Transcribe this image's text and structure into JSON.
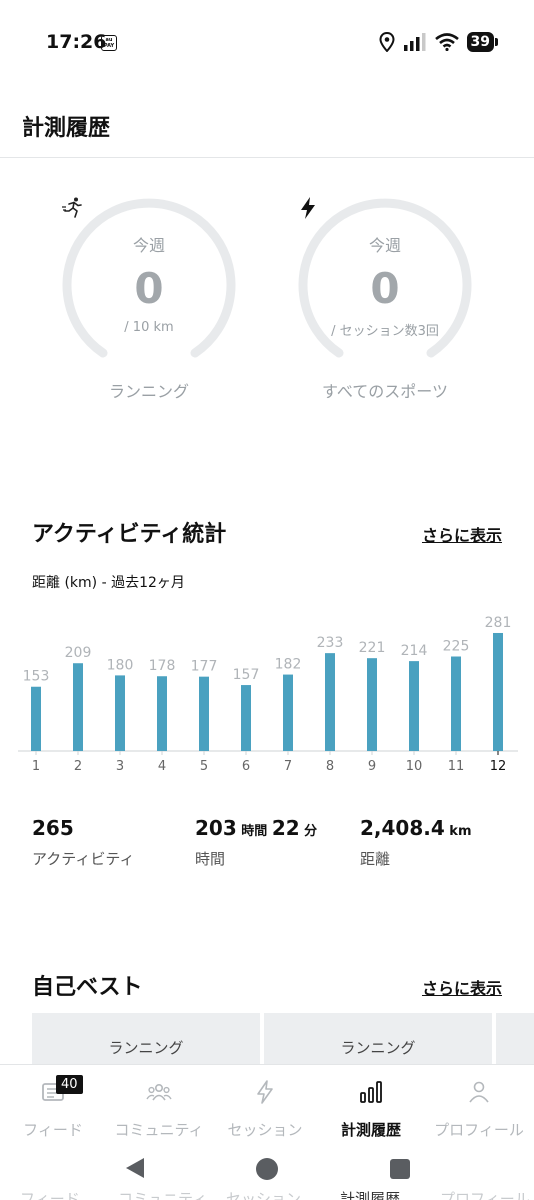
{
  "status_bar": {
    "time": "17:26",
    "aupay_text": "au PAY",
    "battery": "39"
  },
  "header": {
    "title": "計測履歴"
  },
  "goals": [
    {
      "period": "今週",
      "value": "0",
      "goal": "/ 10 km",
      "icon": "running-icon",
      "label": "ランニング"
    },
    {
      "period": "今週",
      "value": "0",
      "goal": "/ セッション数3回",
      "icon": "lightning-icon",
      "label": "すべてのスポーツ"
    }
  ],
  "activity_stats": {
    "title": "アクティビティ統計",
    "more_label": "さらに表示",
    "subtitle": "距離 (km) - 過去12ヶ月"
  },
  "chart_data": {
    "type": "bar",
    "categories": [
      "1",
      "2",
      "3",
      "4",
      "5",
      "6",
      "7",
      "8",
      "9",
      "10",
      "11",
      "12"
    ],
    "values": [
      153,
      209,
      180,
      178,
      177,
      157,
      182,
      233,
      221,
      214,
      225,
      281
    ],
    "highlighted_category": "12",
    "bar_color": "#4aa1c0",
    "label_color": "#b0b4b8"
  },
  "summary": [
    {
      "value": "265",
      "unit": "",
      "value2": "",
      "unit2": "",
      "label": "アクティビティ"
    },
    {
      "value": "203",
      "unit": " 時間 ",
      "value2": "22",
      "unit2": " 分",
      "label": "時間"
    },
    {
      "value": "2,408.4",
      "unit": " km",
      "value2": "",
      "unit2": "",
      "label": "距離"
    }
  ],
  "personal_best": {
    "title": "自己ベスト",
    "more_label": "さらに表示",
    "cards": [
      {
        "label": "ランニング"
      },
      {
        "label": "ランニング"
      }
    ]
  },
  "bottom_nav": {
    "badge": "40",
    "items": [
      {
        "label": "フィード",
        "icon": "feed-icon"
      },
      {
        "label": "コミュニティ",
        "icon": "community-icon"
      },
      {
        "label": "セッション",
        "icon": "session-icon"
      },
      {
        "label": "計測履歴",
        "icon": "history-icon",
        "active": true
      },
      {
        "label": "プロフィール",
        "icon": "profile-icon"
      }
    ]
  }
}
